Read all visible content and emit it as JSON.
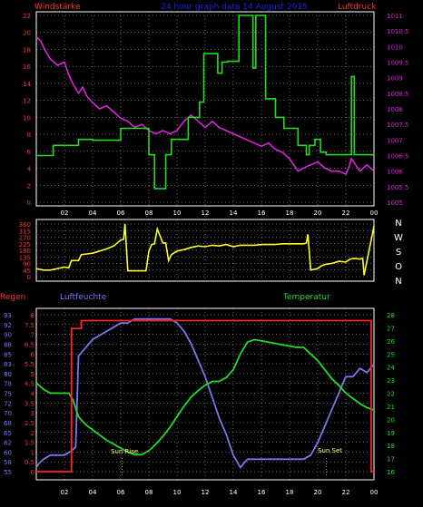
{
  "header": {
    "left_label": "Windstärke",
    "title": "24 hour graph data 14 August 2015",
    "right_label": "Luftdruck"
  },
  "x_ticks": [
    "02",
    "04",
    "06",
    "08",
    "10",
    "12",
    "14",
    "16",
    "18",
    "20",
    "22",
    "00"
  ],
  "compass": [
    "N",
    "W",
    "S",
    "O",
    "N"
  ],
  "bottom_header": {
    "rain_label": "Regen",
    "humidity_label": "Luftfeuchte",
    "temperature_label": "Temperatur"
  },
  "annotations": {
    "sunrise": "Sun Rise",
    "sunset": "Sun Set"
  },
  "colors": {
    "wind": "#22dd22",
    "pressure": "#dd22dd",
    "direction": "#ffff22",
    "rain": "#ff2222",
    "humidity": "#7777ee",
    "temperature": "#22dd22",
    "grid": "#ffffff",
    "title": "#2222ee",
    "left_axis": "#ff3333",
    "humidity_axis": "#7777ff"
  },
  "chart_data": [
    {
      "type": "line",
      "id": "wind_pressure",
      "xlim": [
        0,
        24
      ],
      "y_left": {
        "label": "Windstärke",
        "ticks": [
          0,
          2,
          4,
          6,
          8,
          10,
          12,
          14,
          16,
          18,
          20,
          22
        ],
        "ylim": [
          0,
          22
        ]
      },
      "y_right": {
        "label": "Luftdruck",
        "ticks": [
          "1005",
          "1005.5",
          "1006",
          "1006.5",
          "1007",
          "1007.5",
          "1008",
          "1008.5",
          "1009",
          "1009.5",
          "1010",
          "1010.5",
          "1011"
        ],
        "ylim": [
          1005,
          1011
        ]
      },
      "series": [
        {
          "name": "Windstärke",
          "step": true,
          "x": [
            0,
            0.4,
            1.2,
            2.2,
            3.0,
            4.0,
            4.8,
            5.9,
            6.0,
            6.5,
            7.3,
            8.0,
            8.4,
            8.6,
            9.2,
            9.6,
            10.8,
            11.6,
            11.9,
            12.2,
            12.9,
            13.2,
            13.5,
            13.6,
            14.0,
            14.4,
            15.1,
            15.4,
            15.6,
            16.0,
            16.3,
            17.0,
            17.6,
            18.6,
            19.2,
            19.4,
            19.8,
            20.2,
            20.6,
            21.0,
            21.6,
            22.1,
            22.4,
            22.6,
            23.6,
            24.0
          ],
          "y": [
            5.5,
            5.5,
            6.7,
            6.7,
            7.4,
            7.3,
            7.3,
            7.3,
            8.7,
            8.7,
            8.7,
            5.6,
            1.6,
            1.6,
            5.6,
            7.4,
            10,
            11.8,
            17.5,
            17.5,
            15.2,
            16.5,
            16.5,
            16.6,
            16.6,
            22,
            22,
            15.8,
            22,
            22,
            12.2,
            10,
            8.7,
            6.7,
            5.6,
            6.7,
            7.4,
            5.9,
            5.6,
            5.6,
            5.6,
            5.6,
            14.8,
            5.6,
            5.6,
            5.6
          ]
        },
        {
          "name": "Luftdruck",
          "x": [
            0,
            0.3,
            0.6,
            1.0,
            1.5,
            2.0,
            2.3,
            2.6,
            3.0,
            3.3,
            3.6,
            4.0,
            4.5,
            5.0,
            5.5,
            6.0,
            6.5,
            7.0,
            7.5,
            8.0,
            8.5,
            9.0,
            9.5,
            10.0,
            10.5,
            11.0,
            11.5,
            12.0,
            12.5,
            13.0,
            13.5,
            14.0,
            14.5,
            15.0,
            15.5,
            16.0,
            16.5,
            17.0,
            17.5,
            18.0,
            18.3,
            18.6,
            19.0,
            19.5,
            20.0,
            20.5,
            21.0,
            21.5,
            22.0,
            22.2,
            22.4,
            22.7,
            23.0,
            23.5,
            24.0
          ],
          "y": [
            1010.3,
            1010.2,
            1009.9,
            1009.6,
            1009.4,
            1009.5,
            1009.1,
            1008.8,
            1008.5,
            1008.7,
            1008.4,
            1008.2,
            1008.0,
            1008.1,
            1007.9,
            1007.7,
            1007.6,
            1007.4,
            1007.5,
            1007.3,
            1007.2,
            1007.3,
            1007.2,
            1007.3,
            1007.6,
            1007.8,
            1007.6,
            1007.4,
            1007.6,
            1007.4,
            1007.3,
            1007.2,
            1007.1,
            1007.0,
            1006.9,
            1006.8,
            1006.9,
            1006.7,
            1006.6,
            1006.4,
            1006.2,
            1006.0,
            1006.1,
            1006.2,
            1006.3,
            1006.1,
            1006.0,
            1006.0,
            1005.9,
            1006.1,
            1006.4,
            1006.2,
            1006.0,
            1006.2,
            1006.0
          ]
        }
      ]
    },
    {
      "type": "line",
      "id": "wind_direction",
      "xlim": [
        0,
        24
      ],
      "y_left": {
        "ticks": [
          "360",
          "315",
          "270",
          "225",
          "180",
          "135",
          "90",
          "45",
          "0"
        ],
        "ylim": [
          0,
          360
        ]
      },
      "series": [
        {
          "name": "Windrichtung",
          "x": [
            0,
            0.5,
            1.0,
            1.5,
            2.0,
            2.3,
            2.5,
            3.0,
            3.2,
            3.6,
            4.0,
            4.5,
            5.0,
            5.5,
            6.0,
            6.2,
            6.3,
            6.5,
            7.0,
            7.4,
            7.6,
            7.8,
            8.0,
            8.2,
            8.4,
            8.6,
            9.0,
            9.2,
            9.4,
            9.6,
            10.0,
            10.5,
            11.0,
            11.5,
            12.0,
            12.5,
            13.0,
            13.5,
            14.0,
            14.5,
            15.0,
            15.5,
            16.0,
            16.5,
            17.0,
            17.5,
            18.0,
            18.5,
            19.0,
            19.2,
            19.3,
            19.5,
            20.0,
            20.3,
            20.6,
            21.0,
            21.5,
            22.0,
            22.3,
            22.6,
            23.0,
            23.2,
            23.3,
            24.0
          ],
          "y": [
            55,
            45,
            45,
            55,
            65,
            60,
            110,
            110,
            150,
            155,
            160,
            175,
            190,
            210,
            250,
            255,
            360,
            40,
            40,
            40,
            40,
            40,
            175,
            220,
            225,
            325,
            230,
            230,
            110,
            150,
            175,
            185,
            200,
            210,
            205,
            215,
            210,
            220,
            205,
            215,
            215,
            215,
            220,
            220,
            220,
            225,
            225,
            225,
            225,
            230,
            290,
            45,
            55,
            75,
            85,
            90,
            105,
            100,
            120,
            125,
            120,
            125,
            10,
            345
          ]
        }
      ]
    },
    {
      "type": "line",
      "id": "rain_humidity_temperature",
      "xlim": [
        0,
        24
      ],
      "y_rain": {
        "label": "Regen",
        "ticks": [
          "8",
          "7.5",
          "7",
          "6.5",
          "6",
          "5.5",
          "5",
          "4.5",
          "4",
          "3.5",
          "3",
          "2.5",
          "2",
          "1.5",
          "1",
          "0.5",
          "0"
        ],
        "ylim": [
          0,
          8
        ]
      },
      "y_humidity": {
        "label": "Luftfeuchte",
        "ticks": [
          "93",
          "92",
          "90",
          "88",
          "85",
          "83",
          "80",
          "78",
          "75",
          "72",
          "70",
          "68",
          "65",
          "62",
          "60",
          "58",
          "55"
        ],
        "ylim": [
          55,
          93
        ]
      },
      "y_temperature": {
        "label": "Temperatur",
        "ticks": [
          "28",
          "27",
          "26",
          "25",
          "24",
          "23",
          "22",
          "21",
          "20",
          "19",
          "18",
          "17",
          "16"
        ],
        "ylim": [
          16,
          28
        ]
      },
      "series": [
        {
          "name": "Regen",
          "step": true,
          "x": [
            0,
            2.3,
            2.5,
            3.0,
            3.2,
            23.6,
            23.8,
            24.0
          ],
          "y": [
            0,
            0,
            7.3,
            7.3,
            7.7,
            7.7,
            0,
            0
          ]
        },
        {
          "name": "Luftfeuchte",
          "x": [
            0,
            0.2,
            0.5,
            1.0,
            1.5,
            2.0,
            2.5,
            2.8,
            3.0,
            3.5,
            4.0,
            4.5,
            5.0,
            5.5,
            6.0,
            6.5,
            7.0,
            7.5,
            8.0,
            8.5,
            9.0,
            9.5,
            10.0,
            10.5,
            11.0,
            11.5,
            12.0,
            12.5,
            13.0,
            13.5,
            14.0,
            14.5,
            15.0,
            15.5,
            16.0,
            16.5,
            17.0,
            17.5,
            18.0,
            18.5,
            19.0,
            19.5,
            20.0,
            20.5,
            21.0,
            21.5,
            22.0,
            22.5,
            23.0,
            23.5,
            24.0
          ],
          "y": [
            56,
            57,
            58,
            59,
            59,
            59,
            60,
            61,
            83,
            85,
            87,
            88,
            89,
            90,
            91,
            91,
            92,
            92,
            92,
            92,
            92,
            92,
            91,
            89,
            86,
            82,
            78,
            73,
            68,
            64,
            59,
            56,
            58,
            58,
            58,
            58,
            58,
            58,
            58,
            58,
            58,
            59,
            62,
            66,
            70,
            74,
            78,
            78,
            80,
            79,
            81
          ]
        },
        {
          "name": "Temperatur",
          "x": [
            0,
            0.5,
            1.0,
            1.5,
            2.0,
            2.3,
            2.6,
            3.0,
            3.5,
            4.0,
            4.5,
            5.0,
            5.5,
            6.0,
            6.5,
            7.0,
            7.5,
            8.0,
            8.5,
            9.0,
            9.5,
            10.0,
            10.5,
            11.0,
            11.5,
            12.0,
            12.5,
            13.0,
            13.5,
            14.0,
            14.5,
            15.0,
            15.5,
            16.0,
            16.5,
            17.0,
            17.5,
            18.0,
            18.5,
            19.0,
            19.5,
            20.0,
            20.5,
            21.0,
            21.5,
            22.0,
            22.5,
            23.0,
            23.5,
            24.0
          ],
          "y": [
            22.8,
            22.3,
            22.0,
            22.0,
            22.0,
            22.0,
            21.5,
            20.2,
            19.6,
            19.2,
            18.8,
            18.4,
            18.1,
            17.8,
            17.5,
            17.3,
            17.3,
            17.6,
            18.1,
            18.7,
            19.4,
            20.2,
            21.0,
            21.7,
            22.2,
            22.6,
            22.9,
            22.9,
            23.2,
            23.8,
            25.0,
            25.9,
            26.1,
            26.0,
            25.9,
            25.8,
            25.7,
            25.6,
            25.5,
            25.5,
            25.0,
            24.5,
            23.8,
            23.1,
            22.6,
            22.0,
            21.6,
            21.2,
            20.9,
            20.7
          ]
        }
      ]
    }
  ]
}
